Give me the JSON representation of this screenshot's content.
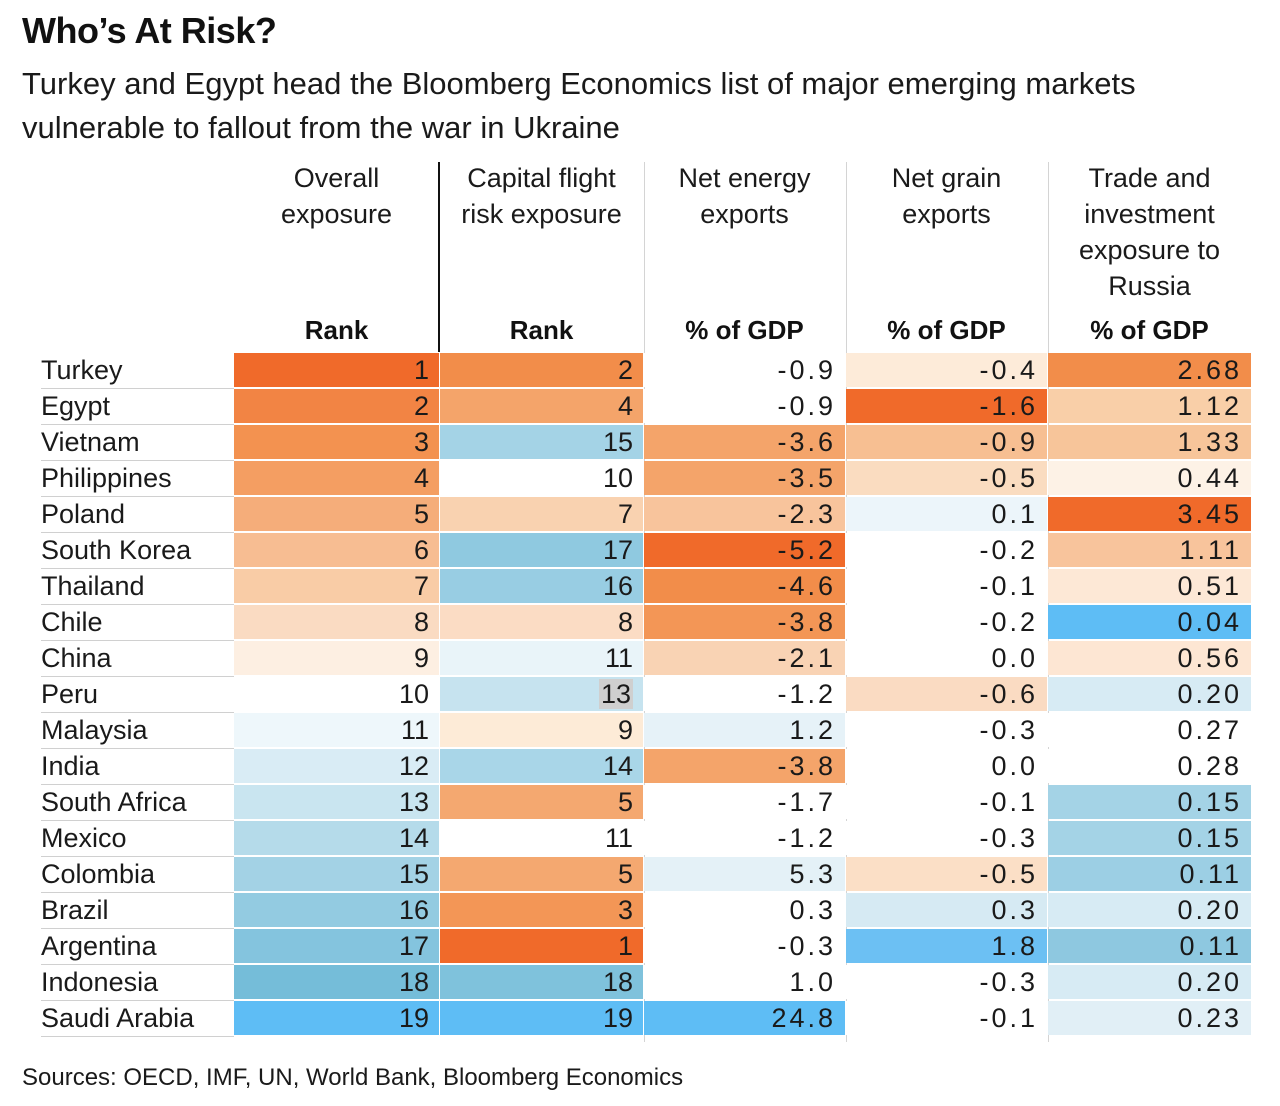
{
  "title": "Who’s At Risk?",
  "subtitle": "Turkey and Egypt head the Bloomberg Economics list of major emerging markets vulnerable to fallout from the war in Ukraine",
  "source": "Sources: OECD, IMF, UN, World Bank, Bloomberg Economics",
  "columns": [
    {
      "key": "overall",
      "header": [
        "Overall",
        "exposure"
      ],
      "unit": "Rank"
    },
    {
      "key": "capital",
      "header": [
        "Capital flight",
        "risk exposure"
      ],
      "unit": "Rank"
    },
    {
      "key": "energy",
      "header": [
        "Net energy",
        "exports"
      ],
      "unit": "% of GDP"
    },
    {
      "key": "grain",
      "header": [
        "Net grain",
        "exports"
      ],
      "unit": "% of GDP"
    },
    {
      "key": "russia",
      "header": [
        "Trade and",
        "investment",
        "exposure to",
        "Russia"
      ],
      "unit": "% of GDP"
    }
  ],
  "chart_data": {
    "type": "table",
    "title": "Who’s At Risk?",
    "categories": [
      "Turkey",
      "Egypt",
      "Vietnam",
      "Philippines",
      "Poland",
      "South Korea",
      "Thailand",
      "Chile",
      "China",
      "Peru",
      "Malaysia",
      "India",
      "South Africa",
      "Mexico",
      "Colombia",
      "Brazil",
      "Argentina",
      "Indonesia",
      "Saudi Arabia"
    ],
    "series": [
      {
        "name": "Overall exposure",
        "unit": "Rank",
        "values": [
          "1",
          "2",
          "3",
          "4",
          "5",
          "6",
          "7",
          "8",
          "9",
          "10",
          "11",
          "12",
          "13",
          "14",
          "15",
          "16",
          "17",
          "18",
          "19"
        ]
      },
      {
        "name": "Capital flight risk exposure",
        "unit": "Rank",
        "values": [
          "2",
          "4",
          "15",
          "10",
          "7",
          "17",
          "16",
          "8",
          "11",
          "13",
          "9",
          "14",
          "5",
          "11",
          "5",
          "3",
          "1",
          "18",
          "19"
        ]
      },
      {
        "name": "Net energy exports",
        "unit": "% of GDP",
        "values": [
          "-0.9",
          "-0.9",
          "-3.6",
          "-3.5",
          "-2.3",
          "-5.2",
          "-4.6",
          "-3.8",
          "-2.1",
          "-1.2",
          "1.2",
          "-3.8",
          "-1.7",
          "-1.2",
          "5.3",
          "0.3",
          "-0.3",
          "1.0",
          "24.8"
        ]
      },
      {
        "name": "Net grain exports",
        "unit": "% of GDP",
        "values": [
          "-0.4",
          "-1.6",
          "-0.9",
          "-0.5",
          "0.1",
          "-0.2",
          "-0.1",
          "-0.2",
          "0.0",
          "-0.6",
          "-0.3",
          "0.0",
          "-0.1",
          "-0.3",
          "-0.5",
          "0.3",
          "1.8",
          "-0.3",
          "-0.1"
        ]
      },
      {
        "name": "Trade and investment exposure to Russia",
        "unit": "% of GDP",
        "values": [
          "2.68",
          "1.12",
          "1.33",
          "0.44",
          "3.45",
          "1.11",
          "0.51",
          "0.04",
          "0.56",
          "0.20",
          "0.27",
          "0.28",
          "0.15",
          "0.15",
          "0.11",
          "0.20",
          "0.11",
          "0.20",
          "0.23"
        ]
      }
    ],
    "cell_colors": [
      [
        "#f06a2a",
        "#f28d4a",
        "#ffffff",
        "#fdebd9",
        "#f28d4a"
      ],
      [
        "#f28444",
        "#f4a46a",
        "#ffffff",
        "#f06a2a",
        "#f9cfa8"
      ],
      [
        "#f39250",
        "#a4d3e6",
        "#f4a46a",
        "#f7bf92",
        "#f7c59a"
      ],
      [
        "#f49e62",
        "#ffffff",
        "#f4a46a",
        "#fadcc0",
        "#fdf2e6"
      ],
      [
        "#f5ad7a",
        "#f9d2b0",
        "#f8c49c",
        "#ecf5fa",
        "#f06a2a"
      ],
      [
        "#f7bd92",
        "#8fc9e0",
        "#f06a2a",
        "#ffffff",
        "#f8c49c"
      ],
      [
        "#f9cca6",
        "#98cde3",
        "#f28d4a",
        "#ffffff",
        "#fde8d6"
      ],
      [
        "#fadbc2",
        "#fbdcc4",
        "#f39656",
        "#ffffff",
        "#5ebdf5"
      ],
      [
        "#fdefe2",
        "#e9f4f9",
        "#f9d3b4",
        "#ffffff",
        "#fde6d3"
      ],
      [
        "#ffffff",
        "#c6e3ef",
        "#ffffff",
        "#fadbc2",
        "#d7ebf4"
      ],
      [
        "#eef7fb",
        "#fdebd7",
        "#e6f2f8",
        "#ffffff",
        "#ffffff"
      ],
      [
        "#d9ecf5",
        "#a9d6e8",
        "#f4a46a",
        "#ffffff",
        "#ffffff"
      ],
      [
        "#c9e5f0",
        "#f4a870",
        "#ffffff",
        "#ffffff",
        "#a4d3e6"
      ],
      [
        "#b5dbea",
        "#ffffff",
        "#ffffff",
        "#ffffff",
        "#a4d3e6"
      ],
      [
        "#a3d2e5",
        "#f4a870",
        "#e4f1f7",
        "#fbdfc6",
        "#9ccfe4"
      ],
      [
        "#93cbe1",
        "#f39656",
        "#ffffff",
        "#d6eaf3",
        "#d7ebf4"
      ],
      [
        "#84c4de",
        "#f06a2a",
        "#ffffff",
        "#6cc0f3",
        "#8ec8e0"
      ],
      [
        "#75bdd9",
        "#7fc2dc",
        "#ffffff",
        "#ffffff",
        "#d7ebf4"
      ],
      [
        "#5ebdf5",
        "#5ebdf5",
        "#5ebdf5",
        "#ffffff",
        "#e1eff6"
      ]
    ],
    "highlighted_cell": {
      "row": 9,
      "column": 1
    }
  }
}
